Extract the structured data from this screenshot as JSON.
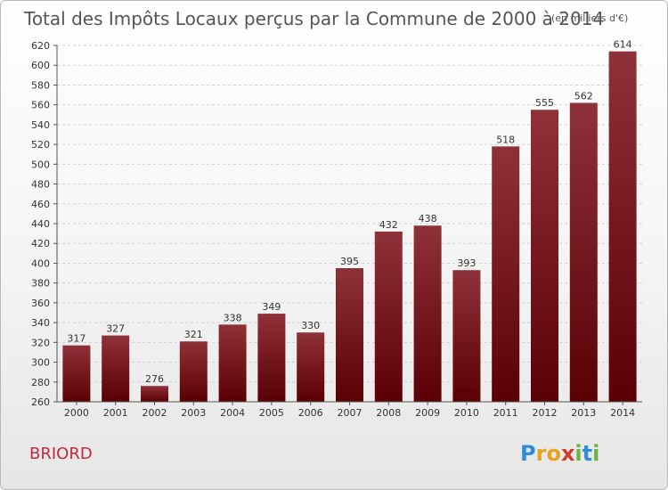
{
  "chart_data": {
    "type": "bar",
    "title": "Total des Impôts Locaux perçus par la Commune de 2000 à 2014",
    "unit": "(en milliers d'€)",
    "categories": [
      "2000",
      "2001",
      "2002",
      "2003",
      "2004",
      "2005",
      "2006",
      "2007",
      "2008",
      "2009",
      "2010",
      "2011",
      "2012",
      "2013",
      "2014"
    ],
    "values": [
      317,
      327,
      276,
      321,
      338,
      349,
      330,
      395,
      432,
      438,
      393,
      518,
      555,
      562,
      614
    ],
    "ylim": [
      260,
      620
    ],
    "yticks": [
      260,
      280,
      300,
      320,
      340,
      360,
      380,
      400,
      420,
      440,
      460,
      480,
      500,
      520,
      540,
      560,
      580,
      600,
      620
    ],
    "xlabel": "",
    "ylabel": "",
    "grid": true,
    "bar_color": "#7a1a24"
  },
  "commune": "BRIORD",
  "logo": {
    "letters": [
      "P",
      "r",
      "o",
      "x",
      "i",
      "t",
      "i"
    ],
    "colors": [
      "#2f8fd6",
      "#e8a21c",
      "#e8a21c",
      "#d23a2a",
      "#6cb33f",
      "#2f8fd6",
      "#6cb33f"
    ]
  }
}
